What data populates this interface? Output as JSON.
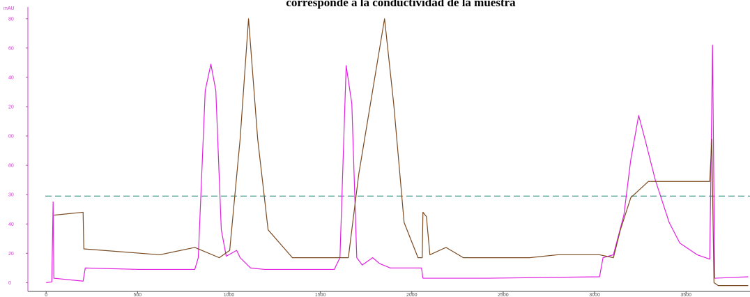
{
  "chart_data": {
    "type": "line",
    "title": "corresponde a la conductividad de la muestra",
    "y_label": "mAU",
    "xlim": [
      -100,
      3850
    ],
    "ylim": [
      -6,
      188
    ],
    "xticks": [
      0,
      500,
      1000,
      1500,
      2000,
      2500,
      3000,
      3500
    ],
    "yticks": [
      0,
      20,
      40,
      {
        "value": 60,
        "label": "30"
      },
      80,
      {
        "value": 100,
        "label": "00"
      },
      {
        "value": 120,
        "label": "20"
      },
      {
        "value": 140,
        "label": "40"
      },
      {
        "value": 160,
        "label": "60"
      },
      {
        "value": 180,
        "label": "80"
      }
    ],
    "reference_line": {
      "value": 59,
      "color": "#5aa898",
      "dashed": true
    },
    "series": [
      {
        "color": "#e020e0",
        "x": [
          0,
          31,
          38,
          42,
          202,
          214,
          508,
          813,
          832,
          870,
          901,
          928,
          958,
          985,
          1042,
          1061,
          1118,
          1195,
          1576,
          1607,
          1641,
          1672,
          1699,
          1729,
          1786,
          1824,
          1882,
          2053,
          2061,
          2416,
          3027,
          3046,
          3103,
          3160,
          3198,
          3241,
          3275,
          3332,
          3408,
          3466,
          3561,
          3630,
          3645,
          3657,
          3840
        ],
        "values": [
          0,
          0.5,
          55,
          3,
          1,
          10,
          9,
          9,
          17,
          131,
          149,
          131,
          36,
          18,
          22,
          17,
          10,
          9,
          9,
          17,
          148,
          122,
          17,
          12,
          17,
          13,
          10,
          10,
          3,
          3,
          4,
          17,
          19,
          46,
          84,
          114,
          98,
          70,
          41,
          27,
          19,
          16,
          162,
          3,
          4
        ]
      },
      {
        "color": "#7a4a22",
        "x": [
          42,
          202,
          206,
          622,
          813,
          947,
          1004,
          1061,
          1107,
          1157,
          1214,
          1347,
          1653,
          1710,
          1851,
          1901,
          1958,
          2034,
          2057,
          2061,
          2080,
          2099,
          2187,
          2282,
          2645,
          2798,
          3027,
          3103,
          3141,
          3198,
          3294,
          3630,
          3641,
          3653,
          3676,
          3840
        ],
        "values": [
          46,
          48,
          23,
          19,
          24,
          17,
          22,
          98,
          180,
          98,
          36,
          17,
          17,
          74,
          180,
          122,
          41,
          17,
          17,
          48,
          45,
          19,
          24,
          17,
          17,
          19,
          19,
          17,
          36,
          58,
          69,
          69,
          98,
          0,
          -2,
          -2
        ]
      }
    ]
  }
}
